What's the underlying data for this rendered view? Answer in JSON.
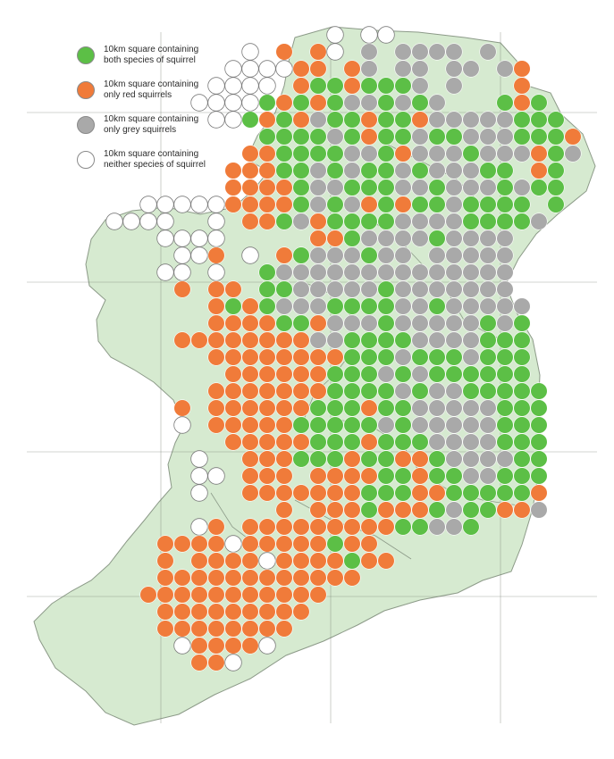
{
  "legend": {
    "items": [
      {
        "key": "both",
        "label": "10km square containing\nboth species of squirrel",
        "color": "#5cbf46"
      },
      {
        "key": "red",
        "label": "10km square containing\nonly red squirrels",
        "color": "#f07b3a"
      },
      {
        "key": "grey",
        "label": "10km square containing\nonly grey squirrels",
        "color": "#a9a9a9"
      },
      {
        "key": "none",
        "label": "10km square containing\nneither species of squirrel",
        "color": "#ffffff"
      }
    ]
  },
  "map": {
    "land_color": "#d6ead0",
    "coast_color": "#8c9a88",
    "grid_color": "#6f7a6c",
    "cell_status_codes": {
      "B": "both",
      "R": "red",
      "G": "grey",
      "W": "none"
    },
    "grid_rows": [
      "..............W.WW..........",
      ".........W.R.RW.G.GGGG.G....",
      "........WWWWRR.RG.GG.GG.GR..",
      ".......WWWW.RBBRBBBG.G...R..",
      "......WWWWBRBRBGGBGBG...BRB.",
      ".......WWBRBRGBBRBBRGGGGGBBB",
      "..........BBBBGBRBBGBBGGGBBBR",
      ".........RRBBBBGGBRGGGBGGGRBG",
      "........RRRBBGBGBBGBGGGBB.RB",
      "........RRRRBGGBBBGGBGGGBGBB",
      "...WWWWWRRRRBGBGRBRBBGBBBB.B",
      ".WWWW..W.RRBGRBBBBGGGGBBBBG.",
      "....WWWW.....RRBGGGGBGGGG....",
      ".....WWR.W.RBGGGBGG.GGGGG....",
      "....WW.W..BGGGGGGGGGGGGGG....",
      ".....R.RR.BBGGGGGBGGGGGGG....",
      ".......RBRBGGGBBBBGGBGGGGG...",
      ".......RRRRBBRGGGBGGGGGBGB...",
      ".....RRRRRRRRGGBBBBGGGGBBB...",
      ".......RRRRRRRRBBBGBBBGBBB...",
      "........RRRRRRBBBGBGBBBBBB...",
      ".......RRRRRRRBBBBGBGGBBBBB..",
      ".....R.RRRRRRBBBRBBGGGGGBBB..",
      ".....W.RRRRRBBBBBGBGGGGGBBB..",
      "........RRRRRBBBRBBBGGGGBBB..",
      "......W..RRRBBBRBBRRBGGGGBB..",
      "......WW.RRR.RRRRBBRBBGGBBB..",
      "......W..RRRRRRRBBBRRBBBBBR..",
      "...........R.RRRBRRRBGBBRRG..",
      "......WR.RRRRRRRRRBBGGB......",
      "....RRRRWRRRRRBRR............",
      "....R.RRRRWRRRRBRR...........",
      "....RRRRRRRRRRRR.............",
      "...RRRRRRRRRRR...............",
      "....RRRRRRRRR................",
      "....RRRRRRRR.................",
      ".....WRRRRW..................",
      "......RRW...................."
    ]
  }
}
